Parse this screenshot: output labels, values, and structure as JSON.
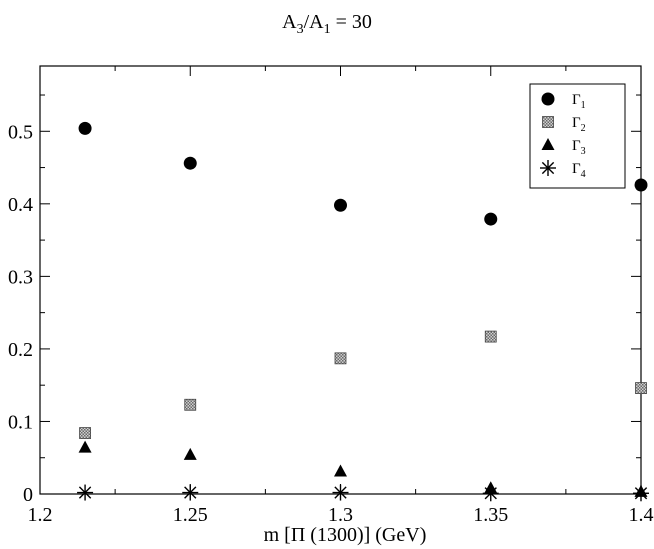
{
  "chart_data": {
    "type": "scatter",
    "title": {
      "main": "A",
      "sub1": "3",
      "mid": "/A",
      "sub2": "1",
      "tail": " = 30"
    },
    "xlabel": "m [Π (1300)] (GeV)",
    "ylabel": "",
    "xlim": [
      1.2,
      1.4
    ],
    "ylim": [
      0,
      0.59
    ],
    "x_ticks": [
      "1.2",
      "1.25",
      "1.3",
      "1.35",
      "1.4"
    ],
    "y_ticks": [
      "0",
      "0.1",
      "0.2",
      "0.3",
      "0.4",
      "0.5"
    ],
    "grid": false,
    "legend_position": "top-right",
    "series": [
      {
        "name": "Γ",
        "sub": "1",
        "marker": "circle",
        "color": "#000000",
        "x": [
          1.215,
          1.25,
          1.3,
          1.35,
          1.4
        ],
        "y": [
          0.504,
          0.456,
          0.398,
          0.379,
          0.426
        ]
      },
      {
        "name": "Γ",
        "sub": "2",
        "marker": "square",
        "color": "#888888",
        "x": [
          1.215,
          1.25,
          1.3,
          1.35,
          1.4
        ],
        "y": [
          0.084,
          0.123,
          0.187,
          0.217,
          0.146
        ]
      },
      {
        "name": "Γ",
        "sub": "3",
        "marker": "triangle",
        "color": "#000000",
        "x": [
          1.215,
          1.25,
          1.3,
          1.35,
          1.4
        ],
        "y": [
          0.064,
          0.054,
          0.031,
          0.008,
          0.003
        ]
      },
      {
        "name": "Γ",
        "sub": "4",
        "marker": "star",
        "color": "#000000",
        "x": [
          1.215,
          1.25,
          1.3,
          1.35,
          1.4
        ],
        "y": [
          0.002,
          0.002,
          0.002,
          0.001,
          0.001
        ]
      }
    ]
  }
}
